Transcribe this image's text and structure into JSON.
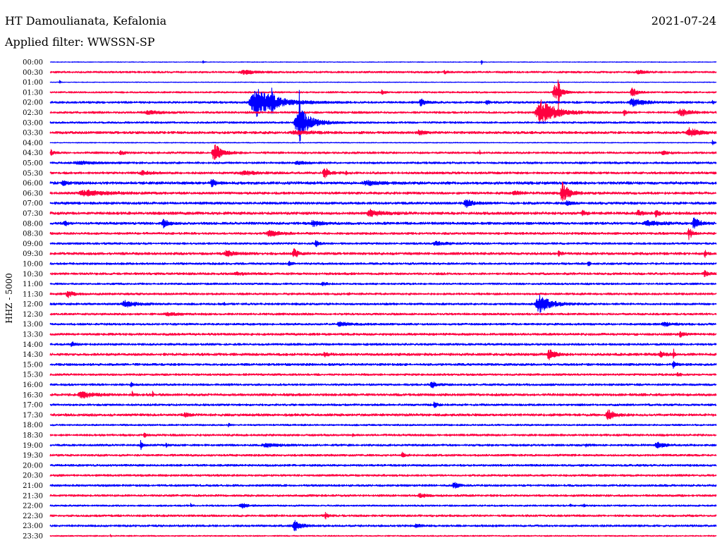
{
  "chart_data": {
    "type": "line",
    "title": "HT Damoulianata, Kefalonia",
    "subtitle": "Applied filter: WWSSN-SP",
    "date": "2021-07-24",
    "ylabel": "HHZ - 5000",
    "minutes_per_line": 30,
    "rows": [
      {
        "label": "00:00",
        "color": "#0000ff",
        "noise": 0.03,
        "events": [
          {
            "t": 6.86,
            "amp": 0.35,
            "dur": 0.1
          },
          {
            "t": 19.4,
            "amp": 0.35,
            "dur": 0.1
          }
        ]
      },
      {
        "label": "00:30",
        "color": "#ff0040",
        "noise": 0.09,
        "events": [
          {
            "t": 8.5,
            "amp": 0.2,
            "dur": 1.5
          },
          {
            "t": 17.7,
            "amp": 0.15,
            "dur": 0.4
          },
          {
            "t": 26.3,
            "amp": 0.18,
            "dur": 1.0
          }
        ]
      },
      {
        "label": "01:00",
        "color": "#0000ff",
        "noise": 0.03,
        "events": [
          {
            "t": 0.41,
            "amp": 0.3,
            "dur": 0.1
          }
        ]
      },
      {
        "label": "01:30",
        "color": "#ff0040",
        "noise": 0.08,
        "events": [
          {
            "t": 14.9,
            "amp": 0.25,
            "dur": 0.3
          },
          {
            "t": 22.6,
            "amp": 0.8,
            "dur": 0.9
          },
          {
            "t": 22.86,
            "amp": 2.1,
            "dur": 0.12
          },
          {
            "t": 26.1,
            "amp": 0.45,
            "dur": 0.7
          }
        ]
      },
      {
        "label": "02:00",
        "color": "#0000ff",
        "noise": 0.1,
        "events": [
          {
            "t": 8.9,
            "amp": 1.45,
            "dur": 2.6
          },
          {
            "t": 9.95,
            "amp": 1.8,
            "dur": 0.15
          },
          {
            "t": 16.6,
            "amp": 0.4,
            "dur": 0.6
          },
          {
            "t": 19.6,
            "amp": 0.2,
            "dur": 0.4
          },
          {
            "t": 26.0,
            "amp": 0.4,
            "dur": 1.5
          },
          {
            "t": 29.8,
            "amp": 0.15,
            "dur": 0.2
          }
        ]
      },
      {
        "label": "02:30",
        "color": "#ff0040",
        "noise": 0.1,
        "events": [
          {
            "t": 4.2,
            "amp": 0.2,
            "dur": 1.5
          },
          {
            "t": 21.8,
            "amp": 1.3,
            "dur": 2.0
          },
          {
            "t": 25.8,
            "amp": 0.35,
            "dur": 0.3
          },
          {
            "t": 28.2,
            "amp": 0.4,
            "dur": 1.2
          }
        ]
      },
      {
        "label": "03:00",
        "color": "#0000ff",
        "noise": 0.09,
        "events": [
          {
            "t": 10.95,
            "amp": 1.55,
            "dur": 1.6
          },
          {
            "t": 11.2,
            "amp": 2.3,
            "dur": 0.1
          }
        ]
      },
      {
        "label": "03:30",
        "color": "#ff0040",
        "noise": 0.12,
        "events": [
          {
            "t": 10.8,
            "amp": 0.18,
            "dur": 2.0
          },
          {
            "t": 16.5,
            "amp": 0.25,
            "dur": 0.8
          },
          {
            "t": 28.6,
            "amp": 0.45,
            "dur": 1.3
          }
        ]
      },
      {
        "label": "04:00",
        "color": "#0000ff",
        "noise": 0.04,
        "events": [
          {
            "t": 29.8,
            "amp": 0.3,
            "dur": 0.2
          }
        ]
      },
      {
        "label": "04:30",
        "color": "#ff0040",
        "noise": 0.1,
        "events": [
          {
            "t": 0.0,
            "amp": 0.35,
            "dur": 0.3
          },
          {
            "t": 3.1,
            "amp": 0.2,
            "dur": 0.5
          },
          {
            "t": 7.25,
            "amp": 1.0,
            "dur": 0.9
          },
          {
            "t": 19.33,
            "amp": 0.25,
            "dur": 0.08
          },
          {
            "t": 27.5,
            "amp": 0.2,
            "dur": 0.6
          }
        ]
      },
      {
        "label": "05:00",
        "color": "#0000ff",
        "noise": 0.1,
        "events": [
          {
            "t": 1.0,
            "amp": 0.15,
            "dur": 2.0
          },
          {
            "t": 11.0,
            "amp": 0.18,
            "dur": 1.0
          }
        ]
      },
      {
        "label": "05:30",
        "color": "#ff0040",
        "noise": 0.11,
        "events": [
          {
            "t": 4.0,
            "amp": 0.18,
            "dur": 1.0
          },
          {
            "t": 8.5,
            "amp": 0.2,
            "dur": 1.5
          },
          {
            "t": 12.25,
            "amp": 0.6,
            "dur": 0.6
          },
          {
            "t": 13.3,
            "amp": 0.35,
            "dur": 0.1
          }
        ]
      },
      {
        "label": "06:00",
        "color": "#0000ff",
        "noise": 0.13,
        "events": [
          {
            "t": 0.5,
            "amp": 0.25,
            "dur": 0.6
          },
          {
            "t": 7.2,
            "amp": 0.4,
            "dur": 0.5
          },
          {
            "t": 14.0,
            "amp": 0.2,
            "dur": 2.0
          }
        ]
      },
      {
        "label": "06:30",
        "color": "#ff0040",
        "noise": 0.12,
        "events": [
          {
            "t": 1.2,
            "amp": 0.3,
            "dur": 2.5
          },
          {
            "t": 20.8,
            "amp": 0.3,
            "dur": 0.7
          },
          {
            "t": 22.95,
            "amp": 1.1,
            "dur": 0.8
          }
        ]
      },
      {
        "label": "07:00",
        "color": "#0000ff",
        "noise": 0.12,
        "events": [
          {
            "t": 18.6,
            "amp": 0.45,
            "dur": 0.8
          },
          {
            "t": 23.2,
            "amp": 0.2,
            "dur": 0.5
          }
        ]
      },
      {
        "label": "07:30",
        "color": "#ff0040",
        "noise": 0.13,
        "events": [
          {
            "t": 14.2,
            "amp": 0.3,
            "dur": 1.5
          },
          {
            "t": 23.9,
            "amp": 0.35,
            "dur": 0.4
          },
          {
            "t": 26.4,
            "amp": 0.3,
            "dur": 0.6
          },
          {
            "t": 27.2,
            "amp": 0.5,
            "dur": 0.4
          }
        ]
      },
      {
        "label": "08:00",
        "color": "#0000ff",
        "noise": 0.12,
        "events": [
          {
            "t": 0.6,
            "amp": 0.3,
            "dur": 0.4
          },
          {
            "t": 5.0,
            "amp": 0.45,
            "dur": 0.6
          },
          {
            "t": 11.7,
            "amp": 0.3,
            "dur": 1.0
          },
          {
            "t": 26.7,
            "amp": 0.25,
            "dur": 1.5
          },
          {
            "t": 28.9,
            "amp": 0.85,
            "dur": 0.6
          }
        ]
      },
      {
        "label": "08:30",
        "color": "#ff0040",
        "noise": 0.11,
        "events": [
          {
            "t": 9.7,
            "amp": 0.3,
            "dur": 1.3
          },
          {
            "t": 28.7,
            "amp": 0.6,
            "dur": 0.4
          }
        ]
      },
      {
        "label": "09:00",
        "color": "#0000ff",
        "noise": 0.1,
        "events": [
          {
            "t": 11.9,
            "amp": 0.35,
            "dur": 0.4
          },
          {
            "t": 17.2,
            "amp": 0.2,
            "dur": 1.2
          }
        ]
      },
      {
        "label": "09:30",
        "color": "#ff0040",
        "noise": 0.12,
        "events": [
          {
            "t": 7.8,
            "amp": 0.3,
            "dur": 1.0
          },
          {
            "t": 10.9,
            "amp": 0.5,
            "dur": 0.5
          },
          {
            "t": 22.85,
            "amp": 0.35,
            "dur": 0.3
          },
          {
            "t": 29.45,
            "amp": 0.45,
            "dur": 0.2
          }
        ]
      },
      {
        "label": "10:00",
        "color": "#0000ff",
        "noise": 0.1,
        "events": [
          {
            "t": 10.7,
            "amp": 0.35,
            "dur": 0.3
          },
          {
            "t": 24.2,
            "amp": 0.3,
            "dur": 0.2
          }
        ]
      },
      {
        "label": "10:30",
        "color": "#ff0040",
        "noise": 0.11,
        "events": [
          {
            "t": 8.2,
            "amp": 0.15,
            "dur": 1.0
          },
          {
            "t": 29.4,
            "amp": 0.3,
            "dur": 0.5
          }
        ]
      },
      {
        "label": "11:00",
        "color": "#0000ff",
        "noise": 0.09,
        "events": [
          {
            "t": 12.2,
            "amp": 0.2,
            "dur": 0.5
          }
        ]
      },
      {
        "label": "11:30",
        "color": "#ff0040",
        "noise": 0.1,
        "events": [
          {
            "t": 0.7,
            "amp": 0.35,
            "dur": 0.7
          },
          {
            "t": 13.4,
            "amp": 0.2,
            "dur": 0.2
          }
        ]
      },
      {
        "label": "12:00",
        "color": "#0000ff",
        "noise": 0.1,
        "events": [
          {
            "t": 3.2,
            "amp": 0.3,
            "dur": 1.3
          },
          {
            "t": 7.8,
            "amp": 0.25,
            "dur": 0.1
          },
          {
            "t": 21.8,
            "amp": 0.9,
            "dur": 1.5
          }
        ]
      },
      {
        "label": "12:30",
        "color": "#ff0040",
        "noise": 0.1,
        "events": [
          {
            "t": 5.0,
            "amp": 0.12,
            "dur": 2.0
          }
        ]
      },
      {
        "label": "13:00",
        "color": "#0000ff",
        "noise": 0.1,
        "events": [
          {
            "t": 12.9,
            "amp": 0.25,
            "dur": 1.0
          },
          {
            "t": 27.5,
            "amp": 0.18,
            "dur": 1.0
          }
        ]
      },
      {
        "label": "13:30",
        "color": "#ff0040",
        "noise": 0.11,
        "events": [
          {
            "t": 28.3,
            "amp": 0.3,
            "dur": 0.5
          }
        ]
      },
      {
        "label": "14:00",
        "color": "#0000ff",
        "noise": 0.1,
        "events": [
          {
            "t": 0.9,
            "amp": 0.25,
            "dur": 0.5
          }
        ]
      },
      {
        "label": "14:30",
        "color": "#ff0040",
        "noise": 0.12,
        "events": [
          {
            "t": 12.3,
            "amp": 0.25,
            "dur": 0.5
          },
          {
            "t": 22.35,
            "amp": 0.6,
            "dur": 0.7
          },
          {
            "t": 27.4,
            "amp": 0.3,
            "dur": 0.6
          },
          {
            "t": 28.05,
            "amp": 0.85,
            "dur": 0.08
          }
        ]
      },
      {
        "label": "15:00",
        "color": "#0000ff",
        "noise": 0.11,
        "events": [
          {
            "t": 28.0,
            "amp": 0.35,
            "dur": 0.4
          }
        ]
      },
      {
        "label": "15:30",
        "color": "#ff0040",
        "noise": 0.1,
        "events": [
          {
            "t": 28.2,
            "amp": 0.2,
            "dur": 0.4
          }
        ]
      },
      {
        "label": "16:00",
        "color": "#0000ff",
        "noise": 0.1,
        "events": [
          {
            "t": 3.6,
            "amp": 0.3,
            "dur": 0.2
          },
          {
            "t": 17.1,
            "amp": 0.4,
            "dur": 0.5
          }
        ]
      },
      {
        "label": "16:30",
        "color": "#ff0040",
        "noise": 0.12,
        "events": [
          {
            "t": 1.2,
            "amp": 0.35,
            "dur": 1.4
          },
          {
            "t": 3.68,
            "amp": 0.6,
            "dur": 0.1
          },
          {
            "t": 4.6,
            "amp": 0.35,
            "dur": 0.1
          }
        ]
      },
      {
        "label": "17:00",
        "color": "#0000ff",
        "noise": 0.1,
        "events": [
          {
            "t": 17.25,
            "amp": 0.4,
            "dur": 0.3
          }
        ]
      },
      {
        "label": "17:30",
        "color": "#ff0040",
        "noise": 0.12,
        "events": [
          {
            "t": 6.0,
            "amp": 0.3,
            "dur": 0.4
          },
          {
            "t": 25.0,
            "amp": 0.5,
            "dur": 0.8
          }
        ]
      },
      {
        "label": "18:00",
        "color": "#0000ff",
        "noise": 0.08,
        "events": [
          {
            "t": 8.0,
            "amp": 0.2,
            "dur": 0.2
          }
        ]
      },
      {
        "label": "18:30",
        "color": "#ff0040",
        "noise": 0.1,
        "events": [
          {
            "t": 4.2,
            "amp": 0.45,
            "dur": 0.2
          },
          {
            "t": 13.6,
            "amp": 0.2,
            "dur": 0.1
          }
        ]
      },
      {
        "label": "19:00",
        "color": "#0000ff",
        "noise": 0.1,
        "events": [
          {
            "t": 4.05,
            "amp": 0.6,
            "dur": 0.2
          },
          {
            "t": 5.2,
            "amp": 0.3,
            "dur": 0.1
          },
          {
            "t": 9.5,
            "amp": 0.2,
            "dur": 1.5
          },
          {
            "t": 24.1,
            "amp": 0.2,
            "dur": 0.2
          },
          {
            "t": 27.2,
            "amp": 0.3,
            "dur": 1.0
          }
        ]
      },
      {
        "label": "19:30",
        "color": "#ff0040",
        "noise": 0.1,
        "events": [
          {
            "t": 15.8,
            "amp": 0.3,
            "dur": 0.3
          }
        ]
      },
      {
        "label": "20:00",
        "color": "#0000ff",
        "noise": 0.1,
        "events": []
      },
      {
        "label": "20:30",
        "color": "#ff0040",
        "noise": 0.1,
        "events": []
      },
      {
        "label": "21:00",
        "color": "#0000ff",
        "noise": 0.1,
        "events": [
          {
            "t": 18.1,
            "amp": 0.4,
            "dur": 0.5
          }
        ]
      },
      {
        "label": "21:30",
        "color": "#ff0040",
        "noise": 0.1,
        "events": [
          {
            "t": 16.5,
            "amp": 0.15,
            "dur": 1.0
          }
        ]
      },
      {
        "label": "22:00",
        "color": "#0000ff",
        "noise": 0.08,
        "events": [
          {
            "t": 6.3,
            "amp": 0.2,
            "dur": 0.2
          },
          {
            "t": 8.5,
            "amp": 0.25,
            "dur": 0.8
          },
          {
            "t": 23.4,
            "amp": 0.35,
            "dur": 0.1
          },
          {
            "t": 24.0,
            "amp": 0.25,
            "dur": 0.1
          }
        ]
      },
      {
        "label": "22:30",
        "color": "#ff0040",
        "noise": 0.1,
        "events": [
          {
            "t": 12.35,
            "amp": 0.3,
            "dur": 0.3
          }
        ]
      },
      {
        "label": "23:00",
        "color": "#0000ff",
        "noise": 0.1,
        "events": [
          {
            "t": 10.9,
            "amp": 0.55,
            "dur": 0.8
          },
          {
            "t": 16.4,
            "amp": 0.2,
            "dur": 0.5
          }
        ]
      },
      {
        "label": "23:30",
        "color": "#ff0040",
        "noise": 0.06,
        "events": [
          {
            "t": 2.7,
            "amp": 0.25,
            "dur": 0.1
          }
        ]
      }
    ]
  }
}
